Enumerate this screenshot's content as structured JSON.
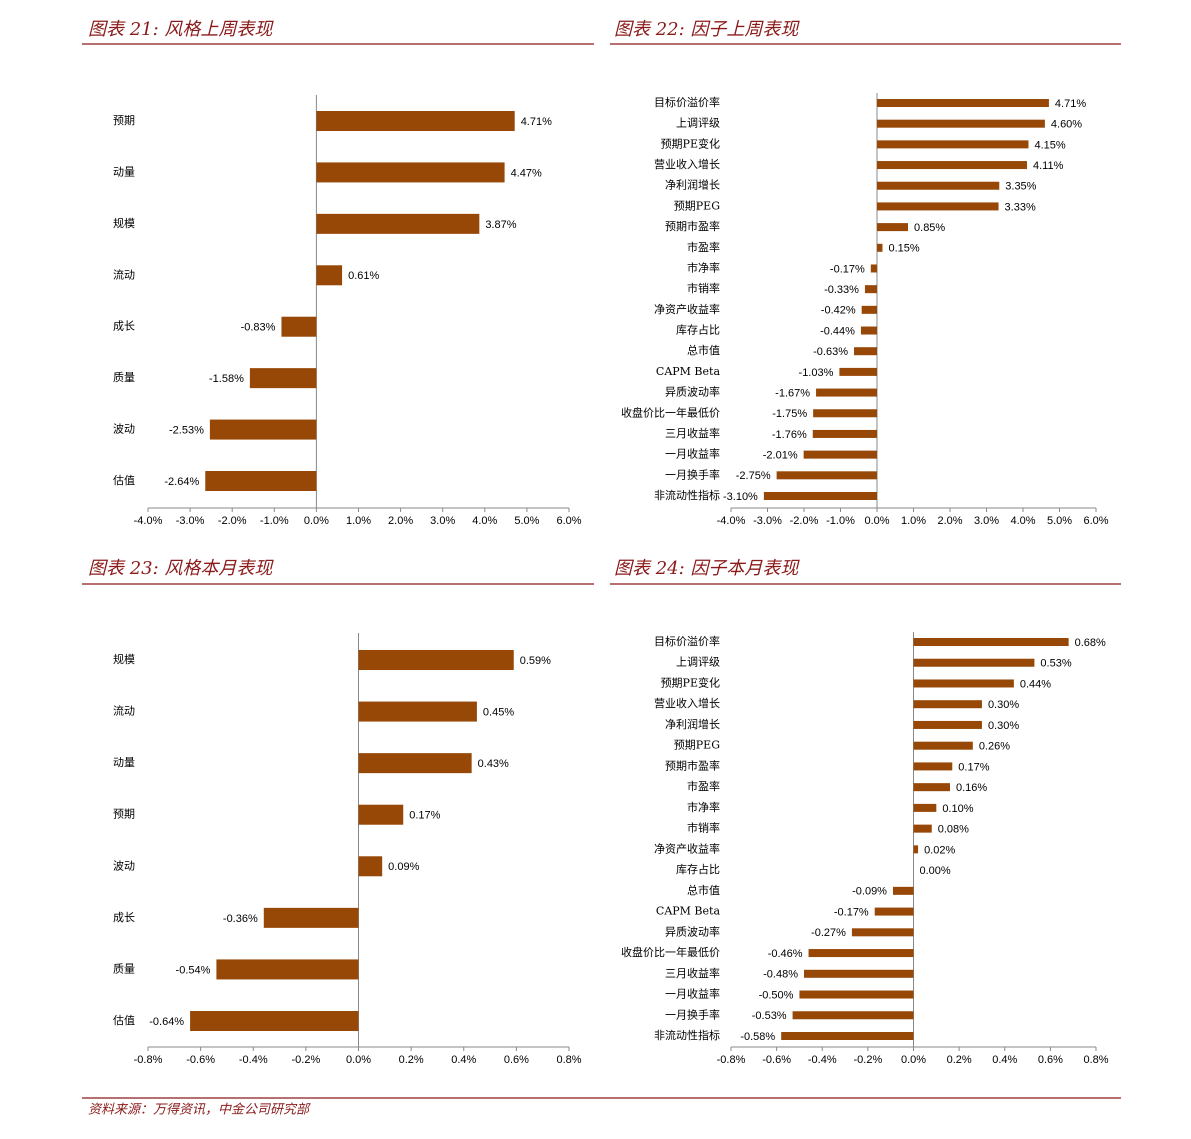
{
  "chart_data": [
    {
      "type": "bar",
      "orientation": "horizontal",
      "title": "图表 21:  风格上周表现",
      "color": "#974706",
      "categories": [
        "预期",
        "动量",
        "规模",
        "流动",
        "成长",
        "质量",
        "波动",
        "估值"
      ],
      "values": [
        4.71,
        4.47,
        3.87,
        0.61,
        -0.83,
        -1.58,
        -2.53,
        -2.64
      ],
      "value_labels": [
        "4.71%",
        "4.47%",
        "3.87%",
        "0.61%",
        "-0.83%",
        "-1.58%",
        "-2.53%",
        "-2.64%"
      ],
      "xlim": [
        -4,
        6
      ],
      "xticks": [
        {
          "value": -4,
          "label": "-4.0%"
        },
        {
          "value": -3,
          "label": "-3.0%"
        },
        {
          "value": -2,
          "label": "-2.0%"
        },
        {
          "value": -1,
          "label": "-1.0%"
        },
        {
          "value": 0,
          "label": "0.0%"
        },
        {
          "value": 1,
          "label": "1.0%"
        },
        {
          "value": 2,
          "label": "2.0%"
        },
        {
          "value": 3,
          "label": "3.0%"
        },
        {
          "value": 4,
          "label": "4.0%"
        },
        {
          "value": 5,
          "label": "5.0%"
        },
        {
          "value": 6,
          "label": "6.0%"
        }
      ]
    },
    {
      "type": "bar",
      "orientation": "horizontal",
      "title": "图表 22:  因子上周表现",
      "color": "#974706",
      "categories": [
        "目标价溢价率",
        "上调评级",
        "预期PE变化",
        "营业收入增长",
        "净利润增长",
        "预期PEG",
        "预期市盈率",
        "市盈率",
        "市净率",
        "市销率",
        "净资产收益率",
        "库存占比",
        "总市值",
        "CAPM Beta",
        "异质波动率",
        "收盘价比一年最低价",
        "三月收益率",
        "一月收益率",
        "一月换手率",
        "非流动性指标"
      ],
      "values": [
        4.71,
        4.6,
        4.15,
        4.11,
        3.35,
        3.33,
        0.85,
        0.15,
        -0.17,
        -0.33,
        -0.42,
        -0.44,
        -0.63,
        -1.03,
        -1.67,
        -1.75,
        -1.76,
        -2.01,
        -2.75,
        -3.1
      ],
      "value_labels": [
        "4.71%",
        "4.60%",
        "4.15%",
        "4.11%",
        "3.35%",
        "3.33%",
        "0.85%",
        "0.15%",
        "-0.17%",
        "-0.33%",
        "-0.42%",
        "-0.44%",
        "-0.63%",
        "-1.03%",
        "-1.67%",
        "-1.75%",
        "-1.76%",
        "-2.01%",
        "-2.75%",
        "-3.10%"
      ],
      "xlim": [
        -4,
        6
      ],
      "xticks": [
        {
          "value": -4,
          "label": "-4.0%"
        },
        {
          "value": -3,
          "label": "-3.0%"
        },
        {
          "value": -2,
          "label": "-2.0%"
        },
        {
          "value": -1,
          "label": "-1.0%"
        },
        {
          "value": 0,
          "label": "0.0%"
        },
        {
          "value": 1,
          "label": "1.0%"
        },
        {
          "value": 2,
          "label": "2.0%"
        },
        {
          "value": 3,
          "label": "3.0%"
        },
        {
          "value": 4,
          "label": "4.0%"
        },
        {
          "value": 5,
          "label": "5.0%"
        },
        {
          "value": 6,
          "label": "6.0%"
        }
      ]
    },
    {
      "type": "bar",
      "orientation": "horizontal",
      "title": "图表 23:  风格本月表现",
      "color": "#974706",
      "categories": [
        "规模",
        "流动",
        "动量",
        "预期",
        "波动",
        "成长",
        "质量",
        "估值"
      ],
      "values": [
        0.59,
        0.45,
        0.43,
        0.17,
        0.09,
        -0.36,
        -0.54,
        -0.64
      ],
      "value_labels": [
        "0.59%",
        "0.45%",
        "0.43%",
        "0.17%",
        "0.09%",
        "-0.36%",
        "-0.54%",
        "-0.64%"
      ],
      "xlim": [
        -0.8,
        0.8
      ],
      "xticks": [
        {
          "value": -0.8,
          "label": "-0.8%"
        },
        {
          "value": -0.6,
          "label": "-0.6%"
        },
        {
          "value": -0.4,
          "label": "-0.4%"
        },
        {
          "value": -0.2,
          "label": "-0.2%"
        },
        {
          "value": 0,
          "label": "0.0%"
        },
        {
          "value": 0.2,
          "label": "0.2%"
        },
        {
          "value": 0.4,
          "label": "0.4%"
        },
        {
          "value": 0.6,
          "label": "0.6%"
        },
        {
          "value": 0.8,
          "label": "0.8%"
        }
      ]
    },
    {
      "type": "bar",
      "orientation": "horizontal",
      "title": "图表 24:  因子本月表现",
      "color": "#974706",
      "categories": [
        "目标价溢价率",
        "上调评级",
        "预期PE变化",
        "营业收入增长",
        "净利润增长",
        "预期PEG",
        "预期市盈率",
        "市盈率",
        "市净率",
        "市销率",
        "净资产收益率",
        "库存占比",
        "总市值",
        "CAPM Beta",
        "异质波动率",
        "收盘价比一年最低价",
        "三月收益率",
        "一月收益率",
        "一月换手率",
        "非流动性指标"
      ],
      "values": [
        0.68,
        0.53,
        0.44,
        0.3,
        0.3,
        0.26,
        0.17,
        0.16,
        0.1,
        0.08,
        0.02,
        0.0,
        -0.09,
        -0.17,
        -0.27,
        -0.46,
        -0.48,
        -0.5,
        -0.53,
        -0.58
      ],
      "value_labels": [
        "0.68%",
        "0.53%",
        "0.44%",
        "0.30%",
        "0.30%",
        "0.26%",
        "0.17%",
        "0.16%",
        "0.10%",
        "0.08%",
        "0.02%",
        "0.00%",
        "-0.09%",
        "-0.17%",
        "-0.27%",
        "-0.46%",
        "-0.48%",
        "-0.50%",
        "-0.53%",
        "-0.58%"
      ],
      "xlim": [
        -0.8,
        0.8
      ],
      "xticks": [
        {
          "value": -0.8,
          "label": "-0.8%"
        },
        {
          "value": -0.6,
          "label": "-0.6%"
        },
        {
          "value": -0.4,
          "label": "-0.4%"
        },
        {
          "value": -0.2,
          "label": "-0.2%"
        },
        {
          "value": 0,
          "label": "0.0%"
        },
        {
          "value": 0.2,
          "label": "0.2%"
        },
        {
          "value": 0.4,
          "label": "0.4%"
        },
        {
          "value": 0.6,
          "label": "0.6%"
        },
        {
          "value": 0.8,
          "label": "0.8%"
        }
      ]
    }
  ],
  "source": "资料来源：万得资讯，中金公司研究部"
}
